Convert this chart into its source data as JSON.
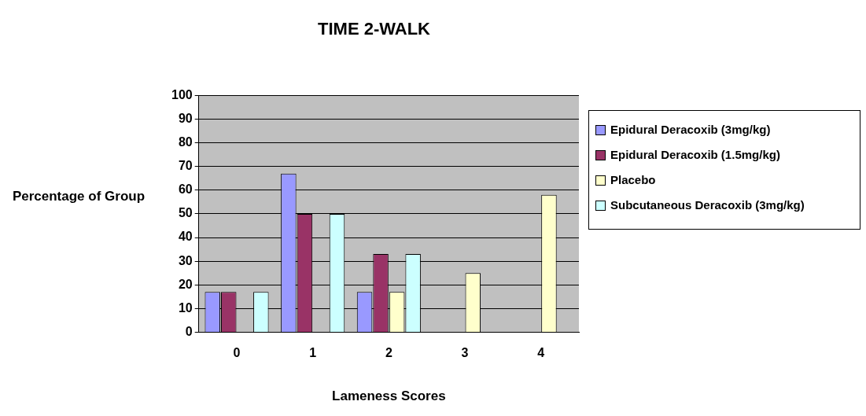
{
  "chart_data": {
    "type": "bar",
    "title": "TIME 2-WALK",
    "xlabel": "Lameness Scores",
    "ylabel": "Percentage of Group",
    "categories": [
      "0",
      "1",
      "2",
      "3",
      "4"
    ],
    "series": [
      {
        "name": "Epidural Deracoxib (3mg/kg)",
        "color": "#9999ff",
        "values": [
          17,
          67,
          17,
          0,
          0
        ]
      },
      {
        "name": "Epidural Deracoxib (1.5mg/kg)",
        "color": "#993366",
        "values": [
          17,
          50,
          33,
          0,
          0
        ]
      },
      {
        "name": "Placebo",
        "color": "#ffffcc",
        "values": [
          0,
          0,
          17,
          25,
          58
        ]
      },
      {
        "name": "Subcutaneous Deracoxib (3mg/kg)",
        "color": "#ccffff",
        "values": [
          17,
          50,
          33,
          0,
          0
        ]
      }
    ],
    "ylim": [
      0,
      100
    ],
    "yticks": [
      0,
      10,
      20,
      30,
      40,
      50,
      60,
      70,
      80,
      90,
      100
    ],
    "grid": "y",
    "legend": "right"
  }
}
